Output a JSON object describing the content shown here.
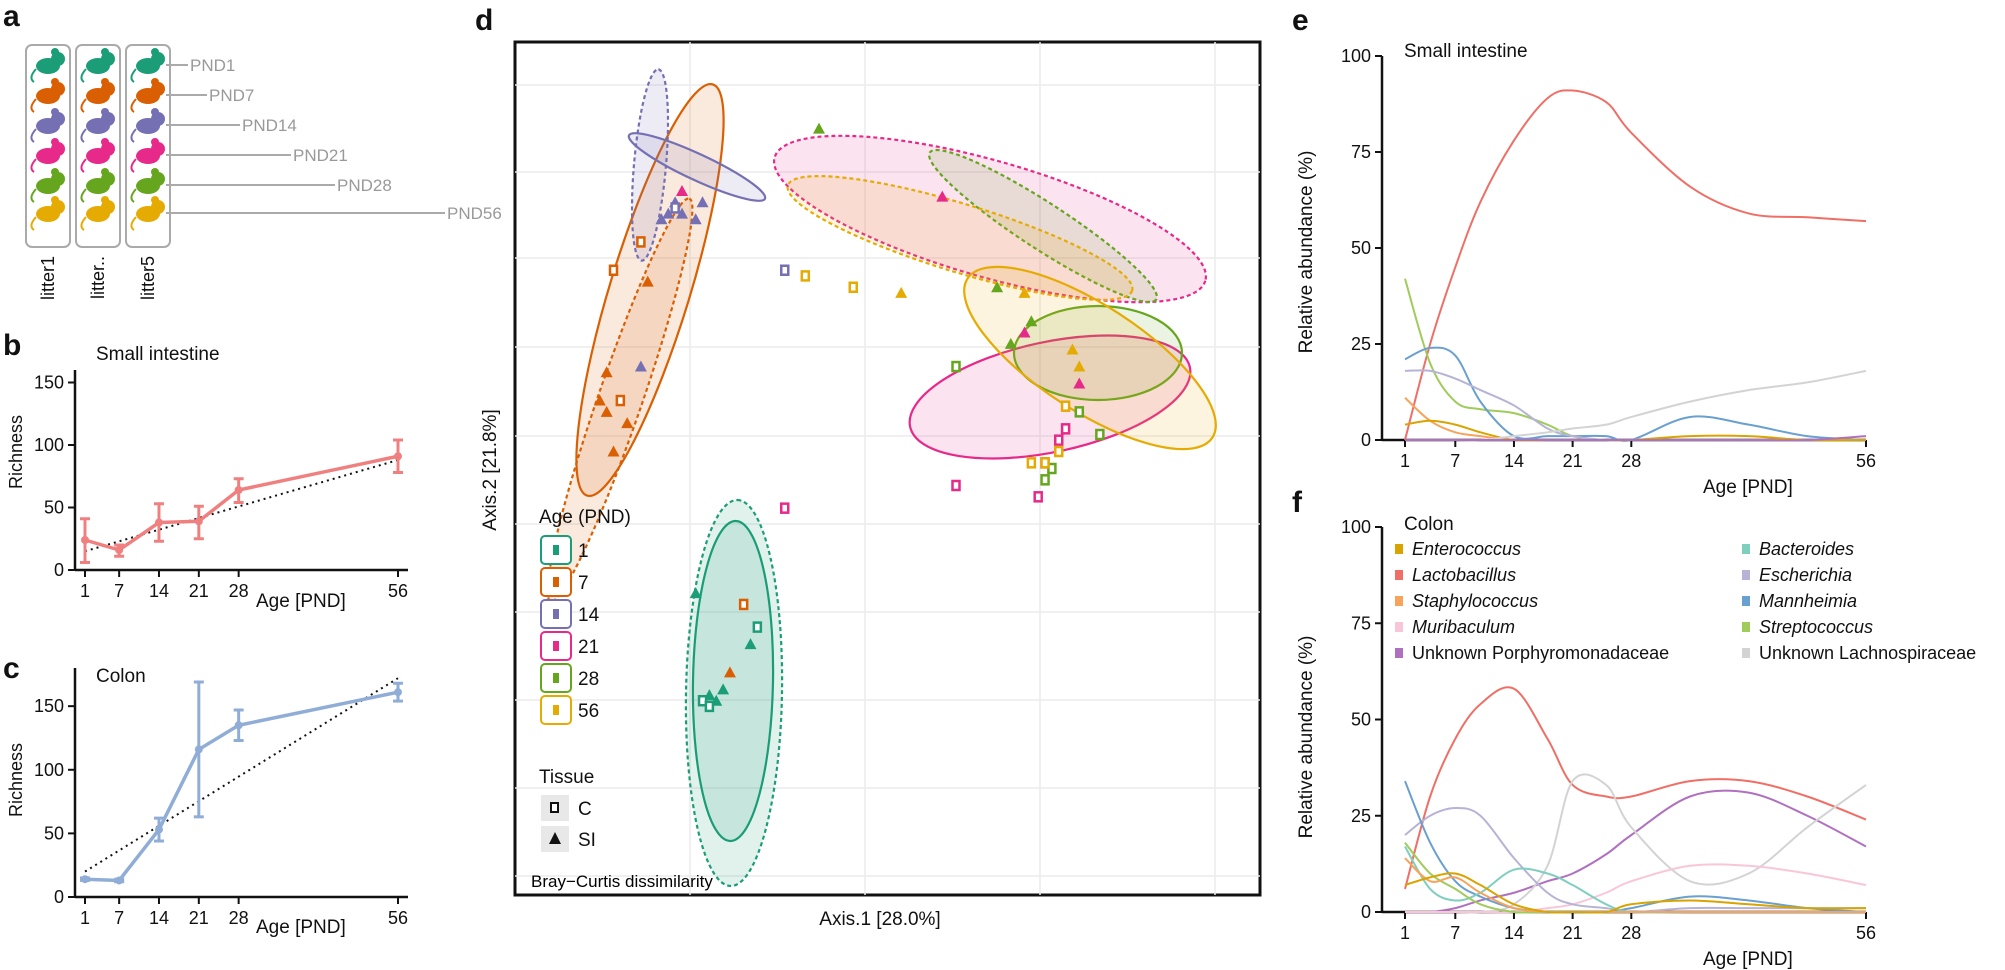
{
  "panel_letters": [
    "a",
    "b",
    "c",
    "d",
    "e",
    "f"
  ],
  "colors": {
    "pnd1": "#1b9e77",
    "pnd7": "#d95f02",
    "pnd14": "#7570b3",
    "pnd21": "#e7298a",
    "pnd28": "#66a61e",
    "pnd56": "#e6ab02",
    "si_line": "#f08080",
    "colon_line": "#8fadd6"
  },
  "panel_a": {
    "litters": [
      "litter1",
      "litter..",
      "litter5"
    ],
    "pnd_labels": [
      "PND1",
      "PND7",
      "PND14",
      "PND21",
      "PND28",
      "PND56"
    ],
    "icon": "mouse-icon"
  },
  "chart_data": [
    {
      "id": "b",
      "type": "line",
      "title": "Small intestine",
      "xlabel": "Age [PND]",
      "ylabel": "Richness",
      "x": [
        1,
        7,
        14,
        21,
        28,
        56
      ],
      "xticks": [
        "1",
        "7",
        "14",
        "21",
        "28",
        "56"
      ],
      "ylim": [
        0,
        160
      ],
      "yticks": [
        "0",
        "50",
        "100",
        "150"
      ],
      "series": [
        {
          "name": "Richness",
          "values": [
            24,
            16,
            38,
            39,
            64,
            91
          ],
          "err_low": [
            6,
            11,
            23,
            25,
            54,
            78
          ],
          "err_high": [
            41,
            20,
            53,
            51,
            73,
            104
          ]
        }
      ],
      "trend": {
        "from": [
          1,
          15
        ],
        "to": [
          56,
          88
        ],
        "style": "dotted"
      }
    },
    {
      "id": "c",
      "type": "line",
      "title": "Colon",
      "xlabel": "Age [PND]",
      "ylabel": "Richness",
      "x": [
        1,
        7,
        14,
        21,
        28,
        56
      ],
      "xticks": [
        "1",
        "7",
        "14",
        "21",
        "28",
        "56"
      ],
      "ylim": [
        0,
        180
      ],
      "yticks": [
        "0",
        "50",
        "100",
        "150"
      ],
      "series": [
        {
          "name": "Richness",
          "values": [
            14,
            13,
            53,
            116,
            135,
            161
          ],
          "err_low": [
            13,
            12,
            44,
            63,
            123,
            154
          ],
          "err_high": [
            15,
            14,
            62,
            169,
            147,
            168
          ]
        }
      ],
      "trend": {
        "from": [
          1,
          20
        ],
        "to": [
          56,
          172
        ],
        "style": "dotted"
      }
    },
    {
      "id": "d",
      "type": "scatter",
      "xlabel": "Axis.1 [28.0%]",
      "ylabel": "Axis.2  [21.8%]",
      "annotation": "Bray−Curtis dissimilarity",
      "legend_age_title": "Age (PND)",
      "legend_age": [
        "1",
        "7",
        "14",
        "21",
        "28",
        "56"
      ],
      "legend_tissue_title": "Tissue",
      "legend_tissue": [
        "C",
        "SI"
      ],
      "points": [
        {
          "age": "1",
          "tissue": "SI",
          "x": 0.22,
          "y": -0.22
        },
        {
          "age": "1",
          "tissue": "SI",
          "x": 0.24,
          "y": -0.4
        },
        {
          "age": "1",
          "tissue": "SI",
          "x": 0.3,
          "y": -0.31
        },
        {
          "age": "1",
          "tissue": "C",
          "x": 0.31,
          "y": -0.28
        },
        {
          "age": "1",
          "tissue": "SI",
          "x": 0.25,
          "y": -0.41
        },
        {
          "age": "1",
          "tissue": "C",
          "x": 0.23,
          "y": -0.41
        },
        {
          "age": "1",
          "tissue": "C",
          "x": 0.24,
          "y": -0.42
        },
        {
          "age": "1",
          "tissue": "SI",
          "x": 0.26,
          "y": -0.39
        },
        {
          "age": "7",
          "tissue": "SI",
          "x": 0.09,
          "y": 0.17
        },
        {
          "age": "7",
          "tissue": "SI",
          "x": 0.08,
          "y": 0.12
        },
        {
          "age": "7",
          "tissue": "SI",
          "x": 0.09,
          "y": 0.1
        },
        {
          "age": "7",
          "tissue": "SI",
          "x": 0.1,
          "y": 0.03
        },
        {
          "age": "7",
          "tissue": "C",
          "x": 0.11,
          "y": 0.12
        },
        {
          "age": "7",
          "tissue": "SI",
          "x": 0.12,
          "y": 0.08
        },
        {
          "age": "7",
          "tissue": "C",
          "x": 0.1,
          "y": 0.35
        },
        {
          "age": "7",
          "tissue": "SI",
          "x": 0.15,
          "y": 0.33
        },
        {
          "age": "7",
          "tissue": "C",
          "x": 0.14,
          "y": 0.4
        },
        {
          "age": "7",
          "tissue": "SI",
          "x": 0.27,
          "y": -0.36
        },
        {
          "age": "7",
          "tissue": "C",
          "x": 0.29,
          "y": -0.24
        },
        {
          "age": "14",
          "tissue": "SI",
          "x": 0.17,
          "y": 0.44
        },
        {
          "age": "14",
          "tissue": "SI",
          "x": 0.18,
          "y": 0.45
        },
        {
          "age": "14",
          "tissue": "SI",
          "x": 0.19,
          "y": 0.47
        },
        {
          "age": "14",
          "tissue": "SI",
          "x": 0.2,
          "y": 0.45
        },
        {
          "age": "14",
          "tissue": "C",
          "x": 0.19,
          "y": 0.46
        },
        {
          "age": "14",
          "tissue": "SI",
          "x": 0.22,
          "y": 0.44
        },
        {
          "age": "14",
          "tissue": "SI",
          "x": 0.23,
          "y": 0.47
        },
        {
          "age": "14",
          "tissue": "SI",
          "x": 0.14,
          "y": 0.18
        },
        {
          "age": "14",
          "tissue": "C",
          "x": 0.35,
          "y": 0.35
        },
        {
          "age": "21",
          "tissue": "SI",
          "x": 0.2,
          "y": 0.49
        },
        {
          "age": "21",
          "tissue": "SI",
          "x": 0.58,
          "y": 0.48
        },
        {
          "age": "21",
          "tissue": "SI",
          "x": 0.7,
          "y": 0.24
        },
        {
          "age": "21",
          "tissue": "SI",
          "x": 0.78,
          "y": 0.15
        },
        {
          "age": "21",
          "tissue": "C",
          "x": 0.76,
          "y": 0.07
        },
        {
          "age": "21",
          "tissue": "C",
          "x": 0.75,
          "y": 0.05
        },
        {
          "age": "21",
          "tissue": "C",
          "x": 0.73,
          "y": 0.01
        },
        {
          "age": "21",
          "tissue": "C",
          "x": 0.72,
          "y": -0.05
        },
        {
          "age": "21",
          "tissue": "C",
          "x": 0.6,
          "y": -0.03
        },
        {
          "age": "21",
          "tissue": "C",
          "x": 0.35,
          "y": -0.07
        },
        {
          "age": "28",
          "tissue": "SI",
          "x": 0.4,
          "y": 0.6
        },
        {
          "age": "28",
          "tissue": "SI",
          "x": 0.66,
          "y": 0.32
        },
        {
          "age": "28",
          "tissue": "SI",
          "x": 0.71,
          "y": 0.26
        },
        {
          "age": "28",
          "tissue": "SI",
          "x": 0.68,
          "y": 0.22
        },
        {
          "age": "28",
          "tissue": "C",
          "x": 0.6,
          "y": 0.18
        },
        {
          "age": "28",
          "tissue": "C",
          "x": 0.78,
          "y": 0.1
        },
        {
          "age": "28",
          "tissue": "C",
          "x": 0.81,
          "y": 0.06
        },
        {
          "age": "28",
          "tissue": "C",
          "x": 0.74,
          "y": 0.0
        },
        {
          "age": "28",
          "tissue": "C",
          "x": 0.73,
          "y": -0.02
        },
        {
          "age": "56",
          "tissue": "C",
          "x": 0.38,
          "y": 0.34
        },
        {
          "age": "56",
          "tissue": "C",
          "x": 0.45,
          "y": 0.32
        },
        {
          "age": "56",
          "tissue": "SI",
          "x": 0.52,
          "y": 0.31
        },
        {
          "age": "56",
          "tissue": "SI",
          "x": 0.7,
          "y": 0.31
        },
        {
          "age": "56",
          "tissue": "SI",
          "x": 0.77,
          "y": 0.21
        },
        {
          "age": "56",
          "tissue": "SI",
          "x": 0.78,
          "y": 0.18
        },
        {
          "age": "56",
          "tissue": "C",
          "x": 0.76,
          "y": 0.11
        },
        {
          "age": "56",
          "tissue": "C",
          "x": 0.75,
          "y": 0.03
        },
        {
          "age": "56",
          "tissue": "C",
          "x": 0.73,
          "y": 0.01
        },
        {
          "age": "56",
          "tissue": "C",
          "x": 0.71,
          "y": 0.01
        }
      ]
    },
    {
      "id": "e",
      "type": "line",
      "title": "Small intestine",
      "xlabel": "Age [PND]",
      "ylabel": "Relative abundance (%)",
      "x": [
        1,
        4,
        7,
        10,
        14,
        18,
        21,
        25,
        28,
        35,
        42,
        49,
        56
      ],
      "xticks": [
        "1",
        "7",
        "14",
        "21",
        "28",
        "56"
      ],
      "ylim": [
        0,
        100
      ],
      "yticks": [
        "0",
        "25",
        "50",
        "75",
        "100"
      ],
      "series": [
        {
          "name": "Lactobacillus",
          "values": [
            0,
            25,
            45,
            62,
            78,
            89,
            91,
            88,
            80,
            66,
            59,
            58,
            57
          ]
        },
        {
          "name": "Streptococcus",
          "values": [
            42,
            20,
            10,
            8,
            7,
            4,
            1,
            0,
            0,
            0,
            0,
            0,
            0
          ]
        },
        {
          "name": "Mannheimia",
          "values": [
            21,
            24,
            22,
            10,
            1,
            1,
            1,
            1,
            0,
            6,
            4,
            1,
            0
          ]
        },
        {
          "name": "Escherichia",
          "values": [
            18,
            18,
            16,
            13,
            9,
            3,
            1,
            0,
            0,
            0,
            0,
            0,
            0
          ]
        },
        {
          "name": "Staphylococcus",
          "values": [
            11,
            5,
            2,
            1,
            0,
            0,
            0,
            0,
            0,
            0,
            0,
            0,
            0
          ]
        },
        {
          "name": "Enterococcus",
          "values": [
            4,
            5,
            4,
            2,
            0,
            0,
            0,
            0,
            0,
            1,
            1,
            0,
            0
          ]
        },
        {
          "name": "Unknown Lachnospiraceae",
          "values": [
            0,
            0,
            0,
            0,
            1,
            2,
            3,
            4,
            6,
            10,
            13,
            15,
            18
          ]
        },
        {
          "name": "Unknown Porphyromonadaceae",
          "values": [
            0,
            0,
            0,
            0,
            0,
            0,
            0,
            0,
            0,
            0,
            0,
            0,
            1
          ]
        }
      ]
    },
    {
      "id": "f",
      "type": "line",
      "title": "Colon",
      "xlabel": "Age [PND]",
      "ylabel": "Relative abundance (%)",
      "x": [
        1,
        4,
        7,
        10,
        14,
        18,
        21,
        25,
        28,
        35,
        42,
        49,
        56
      ],
      "xticks": [
        "1",
        "7",
        "14",
        "21",
        "28",
        "56"
      ],
      "ylim": [
        0,
        100
      ],
      "yticks": [
        "0",
        "25",
        "50",
        "75",
        "100"
      ],
      "series": [
        {
          "name": "Lactobacillus",
          "values": [
            6,
            30,
            45,
            54,
            58,
            45,
            33,
            30,
            30,
            34,
            34,
            30,
            24
          ]
        },
        {
          "name": "Unknown Porphyromonadaceae",
          "values": [
            0,
            0,
            1,
            3,
            5,
            8,
            10,
            15,
            20,
            30,
            31,
            25,
            17
          ]
        },
        {
          "name": "Unknown Lachnospiraceae",
          "values": [
            0,
            0,
            0,
            0,
            2,
            12,
            34,
            33,
            22,
            8,
            10,
            22,
            33
          ]
        },
        {
          "name": "Muribaculum",
          "values": [
            0,
            0,
            0,
            0,
            0,
            1,
            2,
            5,
            8,
            12,
            12,
            10,
            7
          ]
        },
        {
          "name": "Escherichia",
          "values": [
            20,
            25,
            27,
            25,
            14,
            5,
            2,
            1,
            0,
            1,
            1,
            1,
            1
          ]
        },
        {
          "name": "Mannheimia",
          "values": [
            34,
            18,
            8,
            4,
            1,
            0,
            0,
            0,
            1,
            4,
            3,
            1,
            0
          ]
        },
        {
          "name": "Bacteroides",
          "values": [
            17,
            6,
            3,
            5,
            11,
            10,
            7,
            2,
            0,
            0,
            0,
            0,
            0
          ]
        },
        {
          "name": "Streptococcus",
          "values": [
            18,
            10,
            6,
            2,
            0,
            0,
            0,
            0,
            0,
            0,
            0,
            0,
            0
          ]
        },
        {
          "name": "Staphylococcus",
          "values": [
            14,
            8,
            9,
            5,
            1,
            0,
            0,
            0,
            0,
            0,
            0,
            0,
            0
          ]
        },
        {
          "name": "Enterococcus",
          "values": [
            7,
            9,
            10,
            7,
            2,
            0,
            0,
            0,
            2,
            3,
            2,
            1,
            1
          ]
        }
      ],
      "legend": [
        {
          "name": "Enterococcus",
          "italic": true,
          "color": "#d9a400"
        },
        {
          "name": "Lactobacillus",
          "italic": true,
          "color": "#ef6f67"
        },
        {
          "name": "Staphylococcus",
          "italic": true,
          "color": "#f7a35c"
        },
        {
          "name": "Muribaculum",
          "italic": true,
          "color": "#f9c6d9"
        },
        {
          "name": "Unknown Porphyromonadaceae",
          "italic": false,
          "color": "#b070c0"
        },
        {
          "name": "Bacteroides",
          "italic": true,
          "color": "#7fcfbf"
        },
        {
          "name": "Escherichia",
          "italic": true,
          "color": "#b7b3d6"
        },
        {
          "name": "Mannheimia",
          "italic": true,
          "color": "#6aa0cf"
        },
        {
          "name": "Streptococcus",
          "italic": true,
          "color": "#9fcc5b"
        },
        {
          "name": "Unknown Lachnospiraceae",
          "italic": false,
          "color": "#d3d3d3"
        }
      ]
    }
  ]
}
